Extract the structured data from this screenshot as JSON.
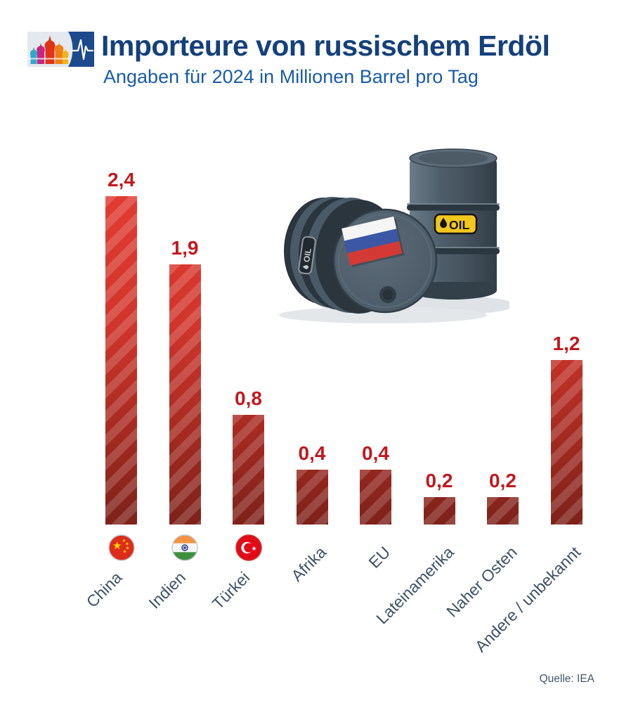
{
  "header": {
    "title": "Importeure von russischem Erdöl",
    "subtitle": "Angaben für 2024 in Millionen Barrel pro Tag"
  },
  "chart_data": {
    "type": "bar",
    "title": "Importeure von russischem Erdöl",
    "subtitle": "Angaben für 2024 in Millionen Barrel pro Tag",
    "unit": "Millionen Barrel pro Tag",
    "categories": [
      "China",
      "Indien",
      "Türkei",
      "Afrika",
      "EU",
      "Lateinamerika",
      "Naher Osten",
      "Andere / unbekannt"
    ],
    "values": [
      2.4,
      1.9,
      0.8,
      0.4,
      0.4,
      0.2,
      0.2,
      1.2
    ],
    "value_labels": [
      "2,4",
      "1,9",
      "0,8",
      "0,4",
      "0,4",
      "0,2",
      "0,2",
      "1,2"
    ],
    "flag_icons": [
      "china-flag",
      "india-flag",
      "turkey-flag"
    ],
    "bar_color_top": "#e23b31",
    "bar_color_bottom": "#7d221a",
    "value_label_color": "#c1191f",
    "category_label_color": "#3d5266",
    "ylim": [
      0,
      2.4
    ],
    "grid": false,
    "legend": false
  },
  "illustration": {
    "barrel_label": "OIL"
  },
  "source": "Quelle: IEA"
}
